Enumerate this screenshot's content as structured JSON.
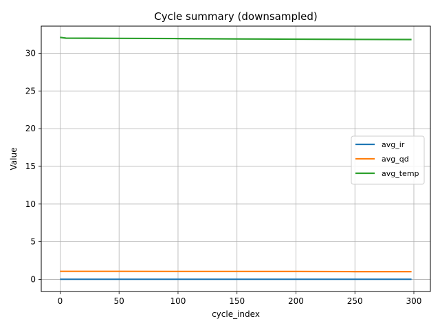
{
  "chart_data": {
    "type": "line",
    "title": "Cycle summary (downsampled)",
    "xlabel": "cycle_index",
    "ylabel": "Value",
    "xlim": [
      -16,
      314
    ],
    "ylim": [
      -1.6,
      33.6
    ],
    "xticks": [
      0,
      50,
      100,
      150,
      200,
      250,
      300
    ],
    "yticks": [
      0,
      5,
      10,
      15,
      20,
      25,
      30
    ],
    "grid": true,
    "legend_position": "center-right",
    "series": [
      {
        "name": "avg_ir",
        "color": "#1f77b4",
        "x": [
          0,
          50,
          100,
          150,
          200,
          250,
          298
        ],
        "y": [
          0.02,
          0.02,
          0.02,
          0.02,
          0.02,
          0.02,
          0.02
        ]
      },
      {
        "name": "avg_qd",
        "color": "#ff7f0e",
        "x": [
          0,
          50,
          100,
          150,
          200,
          250,
          298
        ],
        "y": [
          1.07,
          1.07,
          1.06,
          1.06,
          1.05,
          1.04,
          1.04
        ]
      },
      {
        "name": "avg_temp",
        "color": "#2ca02c",
        "x": [
          0,
          5,
          50,
          100,
          150,
          200,
          250,
          298
        ],
        "y": [
          32.1,
          32.0,
          31.98,
          31.95,
          31.9,
          31.87,
          31.84,
          31.82
        ]
      }
    ]
  }
}
